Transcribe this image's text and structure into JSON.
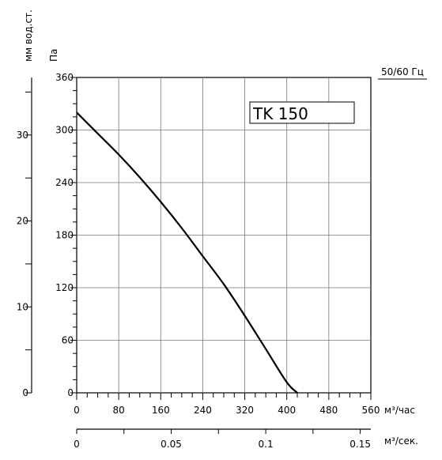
{
  "chart_data": {
    "type": "line",
    "model_label": "TK 150",
    "frequency_label": "50/60 Гц",
    "y_axis": {
      "label": "Па",
      "range": [
        0,
        360
      ],
      "ticks": [
        0,
        60,
        120,
        180,
        240,
        300,
        360
      ],
      "tick_labels": [
        "0",
        "60",
        "120",
        "180",
        "240",
        "300",
        "360"
      ]
    },
    "y_axis_secondary": {
      "label": "мм вод.ст.",
      "range": [
        0,
        36.7
      ],
      "ticks": [
        0,
        10,
        20,
        30
      ],
      "tick_labels": [
        "0",
        "10",
        "20",
        "30"
      ]
    },
    "x_axis": {
      "label": "м³/час",
      "range": [
        0,
        560
      ],
      "ticks": [
        0,
        80,
        160,
        240,
        320,
        400,
        480,
        560
      ],
      "tick_labels": [
        "0",
        "80",
        "160",
        "240",
        "320",
        "400",
        "480",
        "560"
      ]
    },
    "x_axis_secondary": {
      "label": "м³/сек.",
      "range": [
        0,
        0.1556
      ],
      "ticks": [
        0,
        0.05,
        0.1,
        0.15
      ],
      "tick_labels": [
        "0",
        "0.05",
        "0.1",
        "0.15"
      ]
    },
    "grid": true,
    "series": [
      {
        "x": [
          0,
          40,
          80,
          120,
          160,
          200,
          240,
          280,
          320,
          360,
          400,
          420
        ],
        "y": [
          320,
          296,
          272,
          246,
          218,
          188,
          156,
          124,
          88,
          50,
          12,
          0
        ]
      }
    ]
  }
}
